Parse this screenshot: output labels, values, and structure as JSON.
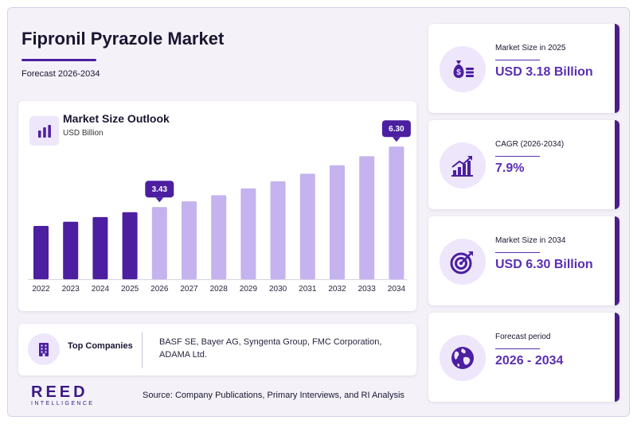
{
  "header": {
    "title": "Fipronil Pyrazole Market",
    "subtitle": "Forecast 2026-2034"
  },
  "chart_card": {
    "title": "Market Size Outlook",
    "unit": "USD Billion",
    "icon": "bar-chart-icon"
  },
  "chart_data": {
    "type": "bar",
    "title": "Market Size Outlook",
    "ylabel": "USD Billion",
    "categories": [
      "2022",
      "2023",
      "2024",
      "2025",
      "2026",
      "2027",
      "2028",
      "2029",
      "2030",
      "2031",
      "2032",
      "2033",
      "2034"
    ],
    "values": [
      2.53,
      2.73,
      2.95,
      3.18,
      3.43,
      3.7,
      3.99,
      4.31,
      4.65,
      5.01,
      5.41,
      5.84,
      6.3
    ],
    "ylim": [
      0,
      6.8
    ],
    "historical_color": "#4b1fa0",
    "forecast_color": "#c4b3ee",
    "callout_color": "#4b1fa0",
    "callouts": [
      {
        "category": "2026",
        "label": "3.43"
      },
      {
        "category": "2034",
        "label": "6.30"
      }
    ],
    "grid": false
  },
  "companies": {
    "label": "Top Companies",
    "text": "BASF SE, Bayer AG, Syngenta Group, FMC Corporation, ADAMA Ltd.",
    "icon": "building-icon"
  },
  "stats": [
    {
      "label": "Market Size in 2025",
      "value": "USD 3.18 Billion",
      "icon": "money-bag-icon"
    },
    {
      "label": "CAGR (2026-2034)",
      "value": "7.9%",
      "icon": "growth-chart-icon"
    },
    {
      "label": "Market Size in 2034",
      "value": "USD 6.30 Billion",
      "icon": "target-icon"
    },
    {
      "label": "Forecast period",
      "value": "2026 - 2034",
      "icon": "globe-icon"
    }
  ],
  "footer": {
    "logo_main": "REED",
    "logo_sub": "INTELLIGENCE",
    "source": "Source: Company Publications, Primary Interviews, and RI Analysis"
  },
  "colors": {
    "accent": "#4b1fa0",
    "value_text": "#5a2fb5",
    "icon_bg": "#eee6fb"
  }
}
